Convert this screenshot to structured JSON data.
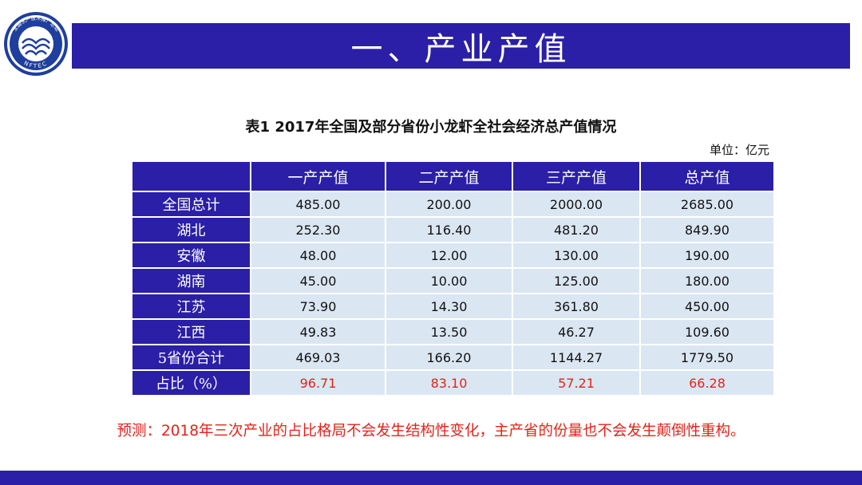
{
  "logo": {
    "top_text": "全国水产技术推广总站",
    "bottom_text": "NFTEC"
  },
  "title": "一、产业产值",
  "table": {
    "caption": "表1 2017年全国及部分省份小龙虾全社会经济总产值情况",
    "unit": "单位：亿元",
    "headers": [
      "",
      "一产产值",
      "二产产值",
      "三产产值",
      "总产值"
    ],
    "rows": [
      {
        "label": "全国总计",
        "values": [
          "485.00",
          "200.00",
          "2000.00",
          "2685.00"
        ]
      },
      {
        "label": "湖北",
        "values": [
          "252.30",
          "116.40",
          "481.20",
          "849.90"
        ]
      },
      {
        "label": "安徽",
        "values": [
          "48.00",
          "12.00",
          "130.00",
          "190.00"
        ]
      },
      {
        "label": "湖南",
        "values": [
          "45.00",
          "10.00",
          "125.00",
          "180.00"
        ]
      },
      {
        "label": "江苏",
        "values": [
          "73.90",
          "14.30",
          "361.80",
          "450.00"
        ]
      },
      {
        "label": "江西",
        "values": [
          "49.83",
          "13.50",
          "46.27",
          "109.60"
        ]
      },
      {
        "label": "5省份合计",
        "values": [
          "469.03",
          "166.20",
          "1144.27",
          "1779.50"
        ]
      },
      {
        "label": "占比（%）",
        "values": [
          "96.71",
          "83.10",
          "57.21",
          "66.28"
        ]
      }
    ]
  },
  "forecast": "预测：2018年三次产业的占比格局不会发生结构性变化，主产省的份量也不会发生颠倒性重构。",
  "colors": {
    "brand_blue": "#2a1fa6",
    "cell_bg": "#dbe6f3",
    "highlight_red": "#e2231a"
  }
}
